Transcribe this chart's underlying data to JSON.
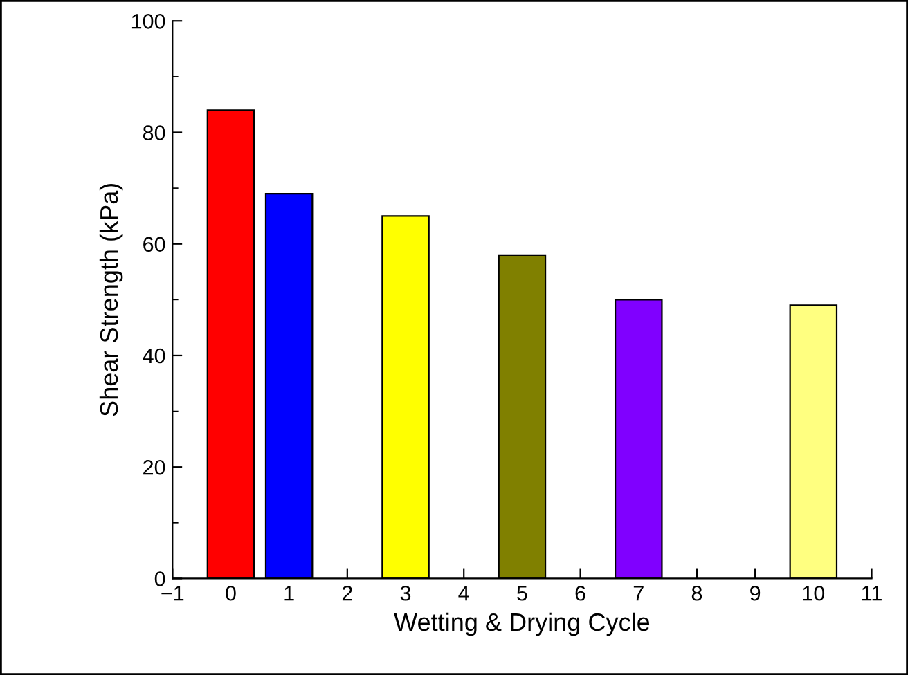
{
  "chart_data": {
    "type": "bar",
    "xlabel": "Wetting & Drying Cycle",
    "ylabel": "Shear Strength (kPa)",
    "x": [
      0,
      1,
      3,
      5,
      7,
      10
    ],
    "values": [
      84,
      69,
      65,
      58,
      50,
      49
    ],
    "colors": [
      "#ff0000",
      "#0000ff",
      "#ffff00",
      "#808000",
      "#8000ff",
      "#ffff80"
    ],
    "xlim": [
      -1,
      11
    ],
    "xticks": [
      -1,
      0,
      1,
      2,
      3,
      4,
      5,
      6,
      7,
      8,
      9,
      10,
      11
    ],
    "ylim": [
      0,
      100
    ],
    "yticks": [
      0,
      20,
      40,
      60,
      80,
      100
    ],
    "grid": false
  }
}
